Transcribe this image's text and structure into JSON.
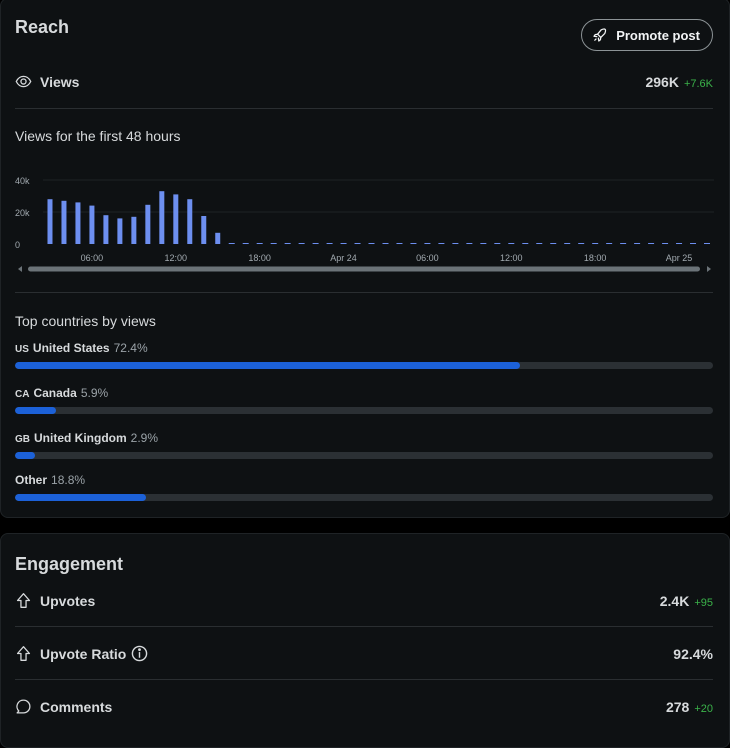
{
  "reach": {
    "title": "Reach",
    "promote_label": "Promote post",
    "views_label": "Views",
    "views_value": "296K",
    "views_delta": "+7.6K",
    "chart_title": "Views for the first 48 hours",
    "countries_title": "Top countries by views",
    "countries": [
      {
        "code": "US",
        "name": "United States",
        "pct_label": "72.4%",
        "pct": 72.4
      },
      {
        "code": "CA",
        "name": "Canada",
        "pct_label": "5.9%",
        "pct": 5.9
      },
      {
        "code": "GB",
        "name": "United Kingdom",
        "pct_label": "2.9%",
        "pct": 2.9
      },
      {
        "code": "",
        "name": "Other",
        "pct_label": "18.8%",
        "pct": 18.8
      }
    ]
  },
  "chart_data": {
    "type": "bar",
    "title": "Views for the first 48 hours",
    "ylim": [
      0,
      40000
    ],
    "y_ticks": [
      {
        "v": 0,
        "label": "0"
      },
      {
        "v": 20000,
        "label": "20k"
      },
      {
        "v": 40000,
        "label": "40k"
      }
    ],
    "x_ticks": [
      {
        "i": 3,
        "label": "06:00"
      },
      {
        "i": 9,
        "label": "12:00"
      },
      {
        "i": 15,
        "label": "18:00"
      },
      {
        "i": 21,
        "label": "Apr 24"
      },
      {
        "i": 27,
        "label": "06:00"
      },
      {
        "i": 33,
        "label": "12:00"
      },
      {
        "i": 39,
        "label": "18:00"
      },
      {
        "i": 45,
        "label": "Apr 25"
      }
    ],
    "values": [
      28000,
      27000,
      26000,
      24000,
      18000,
      16000,
      17000,
      24500,
      33000,
      31000,
      28000,
      17500,
      7000,
      0,
      0,
      0,
      0,
      0,
      0,
      0,
      0,
      0,
      0,
      0,
      0,
      0,
      0,
      0,
      0,
      0,
      0,
      0,
      0,
      0,
      0,
      0,
      0,
      0,
      0,
      0,
      0,
      0,
      0,
      0,
      0,
      0,
      0,
      0
    ],
    "grid": true,
    "colors": {
      "bar": "#6d8ff0",
      "grid": "#1d2226",
      "axis_text": "#a2aab0"
    }
  },
  "engagement": {
    "title": "Engagement",
    "rows": [
      {
        "label": "Upvotes",
        "value": "2.4K",
        "delta": "+95"
      },
      {
        "label": "Upvote Ratio",
        "value": "92.4%",
        "delta": ""
      },
      {
        "label": "Comments",
        "value": "278",
        "delta": "+20"
      }
    ]
  },
  "icons": {
    "promote": "rocket-icon",
    "views": "eye-icon",
    "upvotes": "upvote-arrow-icon",
    "ratio": "upvote-arrow-icon",
    "ratio_info": "info-icon",
    "comments": "comment-bubble-icon"
  },
  "colors": {
    "background": "#0e1113",
    "accent_bar": "#1c61d8",
    "delta_green": "#3bb34a"
  }
}
